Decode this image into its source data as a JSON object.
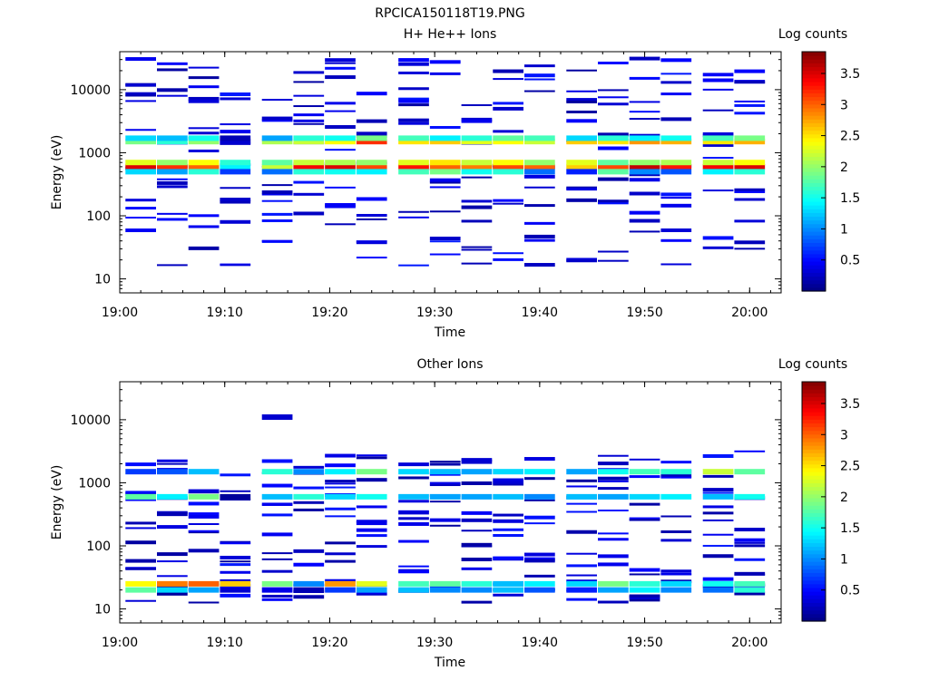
{
  "figure_title": "RPCICA150118T19.PNG",
  "colorbar": {
    "label": "Log counts",
    "ticks": [
      "0.5",
      "1",
      "1.5",
      "2",
      "2.5",
      "3",
      "3.5"
    ],
    "tick_values": [
      0.5,
      1,
      1.5,
      2,
      2.5,
      3,
      3.5
    ],
    "range": [
      0,
      3.85
    ],
    "colormap": "jet"
  },
  "chart_data": [
    {
      "type": "heatmap",
      "title": "H+ He++ Ions",
      "xlabel": "Time",
      "ylabel": "Energy (eV)",
      "ylog": true,
      "ylim": [
        6,
        40000
      ],
      "xlim": [
        "19:00",
        "20:03"
      ],
      "x_ticks": [
        "19:00",
        "19:10",
        "19:20",
        "19:30",
        "19:40",
        "19:50",
        "20:00"
      ],
      "y_ticks": [
        "10",
        "100",
        "1000",
        "10000"
      ],
      "y_tick_values": [
        10,
        100,
        1000,
        10000
      ],
      "time_columns": [
        "19:02",
        "19:05",
        "19:08",
        "19:11",
        "19:15",
        "19:18",
        "19:21",
        "19:24",
        "19:28",
        "19:31",
        "19:34",
        "19:37",
        "19:40",
        "19:44",
        "19:47",
        "19:50",
        "19:53",
        "19:57",
        "20:00"
      ],
      "energy_bands_eV": [
        {
          "energy": 600,
          "values": [
            3.5,
            3.2,
            3.0,
            1.4,
            2.2,
            3.4,
            3.5,
            3.1,
            3.3,
            3.0,
            2.9,
            3.1,
            3.0,
            2.6,
            3.1,
            3.6,
            3.3,
            3.4,
            3.5
          ]
        },
        {
          "energy": 700,
          "values": [
            2.3,
            2.0,
            2.4,
            1.6,
            1.8,
            2.2,
            2.1,
            2.0,
            2.3,
            2.5,
            2.2,
            2.4,
            2.0,
            2.3,
            1.8,
            2.0,
            2.1,
            2.2,
            2.4
          ]
        },
        {
          "energy": 500,
          "values": [
            1.3,
            1.1,
            1.6,
            0.7,
            0.9,
            1.6,
            1.5,
            1.4,
            1.7,
            1.9,
            1.5,
            1.6,
            0.9,
            0.6,
            1.8,
            1.0,
            0.8,
            1.4,
            1.6
          ]
        },
        {
          "energy": 1500,
          "values": [
            1.9,
            1.6,
            2.0,
            0.3,
            2.1,
            2.2,
            2.4,
            3.2,
            2.5,
            2.6,
            2.3,
            2.4,
            2.2,
            2.6,
            2.5,
            2.8,
            2.7,
            2.5,
            2.7
          ]
        },
        {
          "energy": 1700,
          "values": [
            1.3,
            1.2,
            1.5,
            0.2,
            1.1,
            1.6,
            1.5,
            1.9,
            1.7,
            1.4,
            1.6,
            1.8,
            1.7,
            1.3,
            1.6,
            1.4,
            1.5,
            1.7,
            1.9
          ]
        }
      ]
    },
    {
      "type": "heatmap",
      "title": "Other Ions",
      "xlabel": "Time",
      "ylabel": "Energy (eV)",
      "ylog": true,
      "ylim": [
        6,
        40000
      ],
      "xlim": [
        "19:00",
        "20:03"
      ],
      "x_ticks": [
        "19:00",
        "19:10",
        "19:20",
        "19:30",
        "19:40",
        "19:50",
        "20:00"
      ],
      "y_ticks": [
        "10",
        "100",
        "1000",
        "10000"
      ],
      "y_tick_values": [
        10,
        100,
        1000,
        10000
      ],
      "time_columns": [
        "19:02",
        "19:05",
        "19:08",
        "19:11",
        "19:15",
        "19:18",
        "19:21",
        "19:24",
        "19:28",
        "19:31",
        "19:34",
        "19:37",
        "19:40",
        "19:44",
        "19:47",
        "19:50",
        "19:53",
        "19:57",
        "20:00"
      ],
      "energy_bands_eV": [
        {
          "energy": 25,
          "values": [
            2.4,
            2.9,
            3.0,
            2.6,
            1.9,
            1.0,
            2.8,
            2.3,
            1.7,
            1.8,
            1.6,
            1.2,
            1.4,
            1.3,
            1.9,
            1.6,
            1.3,
            1.5,
            1.7
          ]
        },
        {
          "energy": 20,
          "values": [
            1.8,
            1.3,
            1.1,
            0.3,
            0.4,
            0.2,
            0.7,
            1.1,
            1.2,
            1.0,
            1.0,
            1.2,
            0.8,
            0.6,
            1.1,
            1.4,
            1.0,
            0.9,
            1.6
          ]
        },
        {
          "energy": 600,
          "values": [
            1.8,
            1.4,
            1.9,
            0.1,
            1.2,
            1.6,
            1.3,
            1.5,
            1.2,
            1.1,
            1.1,
            1.2,
            1.0,
            1.2,
            1.1,
            1.3,
            1.4,
            1.2,
            1.5
          ]
        },
        {
          "energy": 1500,
          "values": [
            0.7,
            0.8,
            1.2,
            0.0,
            1.6,
            1.0,
            1.4,
            1.9,
            1.3,
            1.2,
            1.1,
            1.3,
            1.4,
            1.1,
            1.5,
            1.7,
            1.6,
            2.2,
            1.8
          ]
        },
        {
          "energy": 11000,
          "values": [
            0,
            0,
            0,
            0,
            0.3,
            0,
            0,
            0,
            0,
            0,
            0,
            0,
            0,
            0,
            0,
            0,
            0,
            0,
            0
          ]
        }
      ]
    }
  ]
}
